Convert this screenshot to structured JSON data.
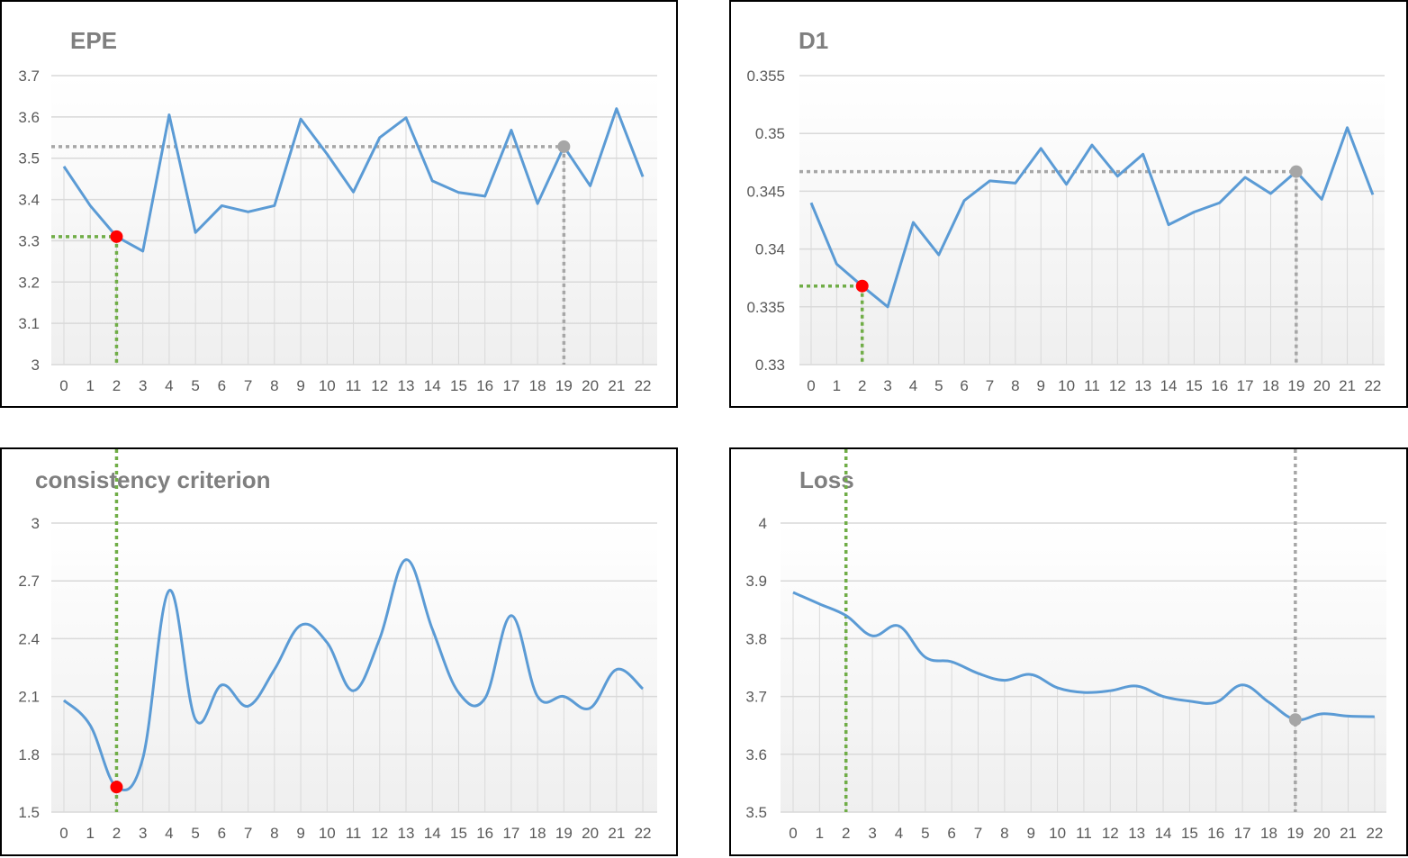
{
  "chart_data": [
    {
      "id": "epe",
      "type": "line",
      "title": "EPE",
      "x": [
        0,
        1,
        2,
        3,
        4,
        5,
        6,
        7,
        8,
        9,
        10,
        11,
        12,
        13,
        14,
        15,
        16,
        17,
        18,
        19,
        20,
        21,
        22
      ],
      "series": [
        {
          "values": [
            3.48,
            3.385,
            3.31,
            3.275,
            3.605,
            3.32,
            3.385,
            3.37,
            3.385,
            3.595,
            3.51,
            3.418,
            3.55,
            3.598,
            3.445,
            3.417,
            3.408,
            3.568,
            3.39,
            3.528,
            3.433,
            3.62,
            3.455
          ]
        }
      ],
      "ylim": [
        3,
        3.7
      ],
      "yticks": [
        "3",
        "3.1",
        "3.2",
        "3.3",
        "3.4",
        "3.5",
        "3.6",
        "3.7"
      ],
      "smooth": false,
      "markers": [
        {
          "x": 2,
          "y": 3.31,
          "color": "#ff0000",
          "guide_color": "#70ad47",
          "guides": "horizontal-left, vertical-down"
        },
        {
          "x": 19,
          "y": 3.528,
          "color": "#a6a6a6",
          "guide_color": "#a6a6a6",
          "guides": "horizontal-left, vertical-down"
        }
      ],
      "colors": {
        "line": "#5b9bd5",
        "grid": "#d9d9d9"
      }
    },
    {
      "id": "d1",
      "type": "line",
      "title": "D1",
      "x": [
        0,
        1,
        2,
        3,
        4,
        5,
        6,
        7,
        8,
        9,
        10,
        11,
        12,
        13,
        14,
        15,
        16,
        17,
        18,
        19,
        20,
        21,
        22
      ],
      "series": [
        {
          "values": [
            0.344,
            0.3387,
            0.3368,
            0.335,
            0.3423,
            0.3395,
            0.3442,
            0.3459,
            0.3457,
            0.3487,
            0.3456,
            0.349,
            0.3463,
            0.3482,
            0.3421,
            0.3432,
            0.344,
            0.3462,
            0.3448,
            0.3467,
            0.3443,
            0.3505,
            0.3447
          ]
        }
      ],
      "ylim": [
        0.33,
        0.355
      ],
      "yticks": [
        "0.33",
        "0.335",
        "0.34",
        "0.345",
        "0.35",
        "0.355"
      ],
      "smooth": false,
      "markers": [
        {
          "x": 2,
          "y": 0.3368,
          "color": "#ff0000",
          "guide_color": "#70ad47",
          "guides": "horizontal-left, vertical-down"
        },
        {
          "x": 19,
          "y": 0.3467,
          "color": "#a6a6a6",
          "guide_color": "#a6a6a6",
          "guides": "horizontal-left, vertical-down"
        }
      ],
      "colors": {
        "line": "#5b9bd5",
        "grid": "#d9d9d9"
      }
    },
    {
      "id": "cons",
      "type": "line",
      "title": "consistency criterion",
      "x": [
        0,
        1,
        2,
        3,
        4,
        5,
        6,
        7,
        8,
        9,
        10,
        11,
        12,
        13,
        14,
        15,
        16,
        17,
        18,
        19,
        20,
        21,
        22
      ],
      "series": [
        {
          "values": [
            2.08,
            1.95,
            1.63,
            1.78,
            2.65,
            1.98,
            2.16,
            2.05,
            2.24,
            2.47,
            2.38,
            2.13,
            2.4,
            2.81,
            2.45,
            2.12,
            2.09,
            2.52,
            2.1,
            2.1,
            2.04,
            2.24,
            2.14
          ]
        }
      ],
      "ylim": [
        1.5,
        3
      ],
      "yticks": [
        "1.5",
        "1.8",
        "2.1",
        "2.4",
        "2.7",
        "3"
      ],
      "smooth": true,
      "markers": [
        {
          "x": 2,
          "y": 1.63,
          "color": "#ff0000",
          "guide_color": "#70ad47",
          "guides": "vertical-full"
        }
      ],
      "colors": {
        "line": "#5b9bd5",
        "grid": "#d9d9d9"
      }
    },
    {
      "id": "loss",
      "type": "line",
      "title": "Loss",
      "x": [
        0,
        1,
        2,
        3,
        4,
        5,
        6,
        7,
        8,
        9,
        10,
        11,
        12,
        13,
        14,
        15,
        16,
        17,
        18,
        19,
        20,
        21,
        22
      ],
      "series": [
        {
          "values": [
            3.88,
            3.86,
            3.84,
            3.805,
            3.822,
            3.768,
            3.76,
            3.74,
            3.728,
            3.738,
            3.715,
            3.707,
            3.71,
            3.718,
            3.7,
            3.692,
            3.69,
            3.72,
            3.69,
            3.66,
            3.67,
            3.666,
            3.665
          ]
        }
      ],
      "ylim": [
        3.5,
        4
      ],
      "yticks": [
        "3.5",
        "3.6",
        "3.7",
        "3.8",
        "3.9",
        "4"
      ],
      "smooth": true,
      "markers": [
        {
          "x": 2,
          "y": null,
          "color": null,
          "guide_color": "#70ad47",
          "guides": "vertical-full"
        },
        {
          "x": 19,
          "y": 3.66,
          "color": "#a6a6a6",
          "guide_color": "#a6a6a6",
          "guides": "vertical-full"
        }
      ],
      "colors": {
        "line": "#5b9bd5",
        "grid": "#d9d9d9"
      }
    }
  ]
}
